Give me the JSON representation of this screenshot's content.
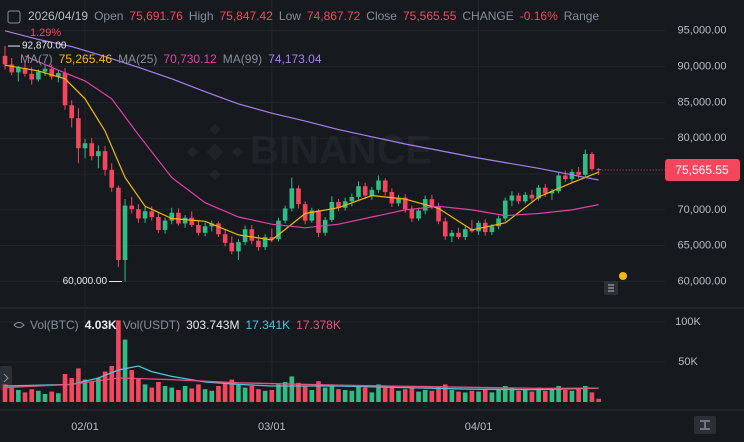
{
  "chart_data": [
    {
      "type": "candlestick",
      "date": "2026/04/19",
      "ohlc": [
        {
          "name": "Open",
          "value": 75691.76,
          "label": "75,691.76"
        },
        {
          "name": "High",
          "value": 75847.42,
          "label": "75,847.42"
        },
        {
          "name": "Low",
          "value": 74867.72,
          "label": "74,867.72"
        },
        {
          "name": "Close",
          "value": 75565.55,
          "label": "75,565.55"
        },
        {
          "name": "CHANGE",
          "value": -0.16,
          "label": "-0.16%"
        }
      ],
      "range_label": "Range",
      "watermark": "BINANCE",
      "up_color": "#2ebd85",
      "down_color": "#f6465d",
      "xlim": [
        -0.75,
        98.95
      ],
      "xticks": [
        {
          "value": 12,
          "label": "02/01"
        },
        {
          "value": 40,
          "label": "03/01"
        },
        {
          "value": 71,
          "label": "04/01"
        }
      ],
      "ylim": [
        56300,
        99300
      ],
      "yticks": [
        {
          "value": 60000,
          "label": "60,000.00"
        },
        {
          "value": 65000,
          "label": "65,000.00"
        },
        {
          "value": 70000,
          "label": "70,000.00"
        },
        {
          "value": 75000,
          "label": "75,000.00"
        },
        {
          "value": 80000,
          "label": "80,000.00"
        },
        {
          "value": 85000,
          "label": "85,000.00"
        },
        {
          "value": 90000,
          "label": "90,000.00"
        },
        {
          "value": 95000,
          "label": "95,000.00"
        }
      ],
      "grid": true,
      "last_price": {
        "value": 75565.55,
        "label": "75,565.55"
      },
      "annotations": [
        {
          "label": "1.29%"
        },
        {
          "x": 0,
          "value": 92870,
          "label": "92,870.00"
        },
        {
          "x": 18,
          "value": 60000,
          "label": "60,000.00"
        }
      ],
      "candles": [
        [
          91500,
          92870,
          89600,
          90300
        ],
        [
          90300,
          91200,
          88800,
          89200
        ],
        [
          89200,
          90100,
          87900,
          89800
        ],
        [
          89800,
          90500,
          88600,
          89000
        ],
        [
          89000,
          89900,
          87500,
          88200
        ],
        [
          88200,
          89600,
          87900,
          89300
        ],
        [
          89300,
          90400,
          88700,
          89700
        ],
        [
          89700,
          90300,
          88200,
          88600
        ],
        [
          88600,
          89500,
          87800,
          89100
        ],
        [
          89100,
          89800,
          84000,
          84600
        ],
        [
          84600,
          85300,
          81500,
          82800
        ],
        [
          82800,
          84200,
          76500,
          78600
        ],
        [
          78600,
          79900,
          77200,
          79300
        ],
        [
          79300,
          80000,
          76900,
          77500
        ],
        [
          77500,
          79000,
          75800,
          78200
        ],
        [
          78200,
          78900,
          74800,
          75600
        ],
        [
          75600,
          76500,
          72500,
          73100
        ],
        [
          73100,
          73400,
          62000,
          63000
        ],
        [
          63000,
          71500,
          60000,
          70600
        ],
        [
          70600,
          71800,
          69500,
          70100
        ],
        [
          70100,
          70800,
          68200,
          68800
        ],
        [
          68800,
          70400,
          68200,
          69800
        ],
        [
          69800,
          70500,
          68500,
          69000
        ],
        [
          69000,
          69600,
          66800,
          67200
        ],
        [
          67200,
          68900,
          66700,
          68500
        ],
        [
          68500,
          70300,
          68000,
          69600
        ],
        [
          69600,
          70200,
          67800,
          68100
        ],
        [
          68100,
          69300,
          67500,
          68900
        ],
        [
          68900,
          69800,
          67600,
          67900
        ],
        [
          67900,
          68600,
          66400,
          66800
        ],
        [
          66800,
          68200,
          66300,
          67700
        ],
        [
          67700,
          68500,
          67000,
          68100
        ],
        [
          68100,
          68400,
          66200,
          66600
        ],
        [
          66600,
          67300,
          64900,
          65400
        ],
        [
          65400,
          66300,
          63800,
          64200
        ],
        [
          64200,
          65900,
          63000,
          65500
        ],
        [
          65500,
          67800,
          65100,
          67300
        ],
        [
          67300,
          67900,
          65200,
          65700
        ],
        [
          65700,
          66500,
          64300,
          64800
        ],
        [
          64800,
          66600,
          64400,
          66200
        ],
        [
          66200,
          67400,
          65500,
          65900
        ],
        [
          65900,
          68900,
          65600,
          68500
        ],
        [
          68500,
          70600,
          68100,
          70200
        ],
        [
          70200,
          74500,
          69800,
          73000
        ],
        [
          73000,
          73400,
          70200,
          70800
        ],
        [
          70800,
          71200,
          68000,
          68500
        ],
        [
          68500,
          70300,
          68200,
          69900
        ],
        [
          69900,
          70100,
          66200,
          66800
        ],
        [
          66800,
          69000,
          66400,
          68600
        ],
        [
          68600,
          71900,
          68300,
          71100
        ],
        [
          71100,
          71500,
          69800,
          70300
        ],
        [
          70300,
          71700,
          69900,
          71200
        ],
        [
          71200,
          72300,
          70500,
          71800
        ],
        [
          71800,
          74000,
          71300,
          73300
        ],
        [
          73300,
          73800,
          71500,
          72000
        ],
        [
          72000,
          73200,
          71400,
          72800
        ],
        [
          72800,
          74800,
          72400,
          74100
        ],
        [
          74100,
          74400,
          72000,
          72500
        ],
        [
          72500,
          73000,
          70400,
          70900
        ],
        [
          70900,
          72100,
          70500,
          71700
        ],
        [
          71700,
          72200,
          69600,
          70100
        ],
        [
          70100,
          70600,
          68300,
          68800
        ],
        [
          68800,
          70300,
          68500,
          69900
        ],
        [
          69900,
          72000,
          69400,
          71500
        ],
        [
          71500,
          72100,
          70100,
          70500
        ],
        [
          70500,
          71000,
          68000,
          68400
        ],
        [
          68400,
          68900,
          65800,
          66300
        ],
        [
          66300,
          67200,
          65500,
          66800
        ],
        [
          66800,
          67500,
          65900,
          66200
        ],
        [
          66200,
          67700,
          65800,
          67300
        ],
        [
          67300,
          68600,
          66800,
          67000
        ],
        [
          67000,
          68500,
          66500,
          68200
        ],
        [
          68200,
          68700,
          66400,
          66900
        ],
        [
          66900,
          68000,
          66500,
          67700
        ],
        [
          67700,
          69200,
          67300,
          68800
        ],
        [
          68800,
          71700,
          68400,
          71300
        ],
        [
          71300,
          72600,
          70500,
          72000
        ],
        [
          72000,
          72400,
          70800,
          71200
        ],
        [
          71200,
          72500,
          70900,
          72100
        ],
        [
          72100,
          72800,
          71200,
          71600
        ],
        [
          71600,
          73500,
          71300,
          73100
        ],
        [
          73100,
          73600,
          71800,
          72300
        ],
        [
          72300,
          72900,
          71400,
          72600
        ],
        [
          72600,
          75200,
          72300,
          74800
        ],
        [
          74800,
          75500,
          73900,
          74300
        ],
        [
          74300,
          75700,
          73900,
          75300
        ],
        [
          75300,
          76000,
          74400,
          74900
        ],
        [
          74900,
          78400,
          74600,
          77800
        ],
        [
          77800,
          78100,
          75400,
          75691.76
        ],
        [
          75691.76,
          75847.42,
          74867.72,
          75565.55
        ]
      ],
      "series": [
        {
          "name": "MA(7)",
          "color": "#f0b90b",
          "value_label": "75,265.46",
          "x": [
            0,
            5,
            9,
            12,
            15,
            18,
            21,
            25,
            30,
            35,
            40,
            45,
            50,
            55,
            60,
            65,
            70,
            75,
            80,
            85,
            89
          ],
          "values": [
            90200,
            89400,
            88300,
            85500,
            81000,
            74500,
            70500,
            68800,
            68400,
            66500,
            65800,
            69500,
            70300,
            72000,
            71500,
            70200,
            67200,
            68200,
            71800,
            73800,
            75265.46
          ]
        },
        {
          "name": "MA(25)",
          "color": "#e040a8",
          "value_label": "70,730.12",
          "x": [
            3,
            8,
            12,
            16,
            20,
            25,
            30,
            35,
            40,
            45,
            50,
            55,
            60,
            65,
            70,
            75,
            80,
            85,
            89
          ],
          "values": [
            91500,
            89500,
            88000,
            85500,
            80500,
            74500,
            71000,
            69000,
            68000,
            67500,
            68000,
            69000,
            70000,
            70500,
            70000,
            69200,
            69500,
            70000,
            70730.12
          ]
        },
        {
          "name": "MA(99)",
          "color": "#a97ef0",
          "value_label": "74,173.04",
          "x": [
            0,
            5,
            10,
            15,
            20,
            25,
            30,
            35,
            40,
            45,
            50,
            55,
            60,
            65,
            70,
            75,
            80,
            85,
            89
          ],
          "values": [
            95000,
            93800,
            92800,
            91400,
            89900,
            88300,
            86500,
            84800,
            83500,
            82400,
            81200,
            80200,
            79200,
            78300,
            77400,
            76600,
            75800,
            74900,
            74173.04
          ]
        }
      ]
    },
    {
      "type": "bar",
      "name": "Vol(BTC)",
      "value_label": "4.03K",
      "quote_volume": {
        "name": "Vol(USDT)",
        "value": 303743000,
        "label": "303.743M"
      },
      "ylim": [
        0,
        115000
      ],
      "yticks": [
        {
          "value": 50000,
          "label": "50K"
        },
        {
          "value": 100000,
          "label": "100K"
        }
      ],
      "values": [
        22000,
        18000,
        15000,
        12000,
        16000,
        14000,
        10000,
        13000,
        11000,
        35000,
        30000,
        42000,
        28000,
        25000,
        30000,
        38000,
        45000,
        102000,
        78000,
        40000,
        30000,
        22000,
        18000,
        25000,
        20000,
        18000,
        15000,
        20000,
        17000,
        22000,
        16000,
        14000,
        20000,
        24000,
        28000,
        22000,
        18000,
        20000,
        16000,
        14000,
        15000,
        22000,
        25000,
        32000,
        24000,
        20000,
        15000,
        26000,
        18000,
        22000,
        16000,
        15000,
        14000,
        20000,
        18000,
        12000,
        22000,
        18000,
        20000,
        14000,
        16000,
        18000,
        13000,
        15000,
        14000,
        19000,
        22000,
        15000,
        13000,
        12000,
        14000,
        13000,
        15000,
        12000,
        16000,
        20000,
        18000,
        14000,
        15000,
        13000,
        18000,
        14000,
        16000,
        20000,
        15000,
        14000,
        17000,
        20000,
        12000,
        4030
      ],
      "series": [
        {
          "color": "#4fc3dc",
          "value_label": "17.341K",
          "x": [
            0,
            10,
            14,
            17,
            20,
            22,
            25,
            30,
            35,
            40,
            50,
            60,
            70,
            80,
            89
          ],
          "values": [
            20000,
            22000,
            30000,
            40000,
            45000,
            38000,
            32000,
            25000,
            22000,
            20000,
            20000,
            18000,
            16000,
            15500,
            17341
          ]
        },
        {
          "color": "#e8527a",
          "value_label": "17.378K",
          "x": [
            0,
            10,
            17,
            25,
            35,
            50,
            65,
            80,
            89
          ],
          "values": [
            18000,
            22000,
            30000,
            28000,
            24000,
            21000,
            19000,
            17000,
            17378
          ]
        }
      ]
    }
  ]
}
